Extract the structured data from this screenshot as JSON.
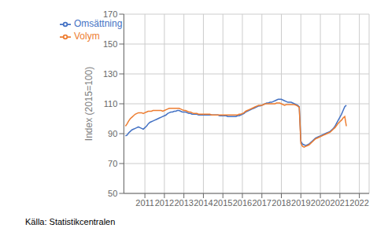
{
  "chart_data": {
    "type": "line",
    "ylabel": "Index (2015=100)",
    "annotations": [
      "Källa: Statistikcentralen"
    ],
    "xlim": [
      2009.92,
      2022.5
    ],
    "xticks": [
      2011,
      2012,
      2013,
      2014,
      2015,
      2016,
      2017,
      2018,
      2019,
      2020,
      2021,
      2022
    ],
    "ylim": [
      50,
      170
    ],
    "yticks": [
      50,
      70,
      90,
      110,
      130,
      150,
      170
    ],
    "grid": true,
    "legend": "upper left",
    "x": [
      2010,
      2010.083333,
      2010.166667,
      2010.25,
      2010.333333,
      2010.416667,
      2010.5,
      2010.583333,
      2010.666667,
      2010.75,
      2010.833333,
      2010.916667,
      2011,
      2011.083333,
      2011.166667,
      2011.25,
      2011.333333,
      2011.416667,
      2011.5,
      2011.583333,
      2011.666667,
      2011.75,
      2011.833333,
      2011.916667,
      2012,
      2012.083333,
      2012.166667,
      2012.25,
      2012.333333,
      2012.416667,
      2012.5,
      2012.583333,
      2012.666667,
      2012.75,
      2012.833333,
      2012.916667,
      2013,
      2013.083333,
      2013.166667,
      2013.25,
      2013.333333,
      2013.416667,
      2013.5,
      2013.583333,
      2013.666667,
      2013.75,
      2013.833333,
      2013.916667,
      2014,
      2014.083333,
      2014.166667,
      2014.25,
      2014.333333,
      2014.416667,
      2014.5,
      2014.583333,
      2014.666667,
      2014.75,
      2014.833333,
      2014.916667,
      2015,
      2015.083333,
      2015.166667,
      2015.25,
      2015.333333,
      2015.416667,
      2015.5,
      2015.583333,
      2015.666667,
      2015.75,
      2015.833333,
      2015.916667,
      2016,
      2016.083333,
      2016.166667,
      2016.25,
      2016.333333,
      2016.416667,
      2016.5,
      2016.583333,
      2016.666667,
      2016.75,
      2016.833333,
      2016.916667,
      2017,
      2017.083333,
      2017.166667,
      2017.25,
      2017.333333,
      2017.416667,
      2017.5,
      2017.583333,
      2017.666667,
      2017.75,
      2017.833333,
      2017.916667,
      2018,
      2018.083333,
      2018.166667,
      2018.25,
      2018.333333,
      2018.416667,
      2018.5,
      2018.583333,
      2018.666667,
      2018.75,
      2018.833333,
      2018.916667,
      2019,
      2019.083333,
      2019.166667,
      2019.25,
      2019.333333,
      2019.416667,
      2019.5,
      2019.583333,
      2019.666667,
      2019.75,
      2019.833333,
      2019.916667,
      2020,
      2020.083333,
      2020.166667,
      2020.25,
      2020.333333,
      2020.416667,
      2020.5,
      2020.583333,
      2020.666667,
      2020.75,
      2020.833333,
      2020.916667,
      2021,
      2021.083333,
      2021.166667,
      2021.25,
      2021.333333
    ],
    "series": [
      {
        "name": "Omsättning",
        "color": "#4472C4",
        "values": [
          88.5,
          89.0,
          90.5,
          91.5,
          92.5,
          93.0,
          93.5,
          94.0,
          94.5,
          94.0,
          93.5,
          93.0,
          94.0,
          95.0,
          96.5,
          97.5,
          98.0,
          98.5,
          99.0,
          99.5,
          100.0,
          100.5,
          101.0,
          101.5,
          102.0,
          102.5,
          103.5,
          104.0,
          104.5,
          104.5,
          105.0,
          105.0,
          105.5,
          105.5,
          105.0,
          104.5,
          104.5,
          104.5,
          104.0,
          103.5,
          103.5,
          103.0,
          103.0,
          103.0,
          103.0,
          102.5,
          102.5,
          102.5,
          102.5,
          102.5,
          102.5,
          102.5,
          102.5,
          102.5,
          102.5,
          102.5,
          102.5,
          102.5,
          102.0,
          102.0,
          102.0,
          102.0,
          102.0,
          101.5,
          101.5,
          101.5,
          101.5,
          101.5,
          101.5,
          102.0,
          102.0,
          102.5,
          103.0,
          103.5,
          104.5,
          105.0,
          105.5,
          106.0,
          106.5,
          107.0,
          107.5,
          108.0,
          108.5,
          108.5,
          109.0,
          109.5,
          110.0,
          110.5,
          110.5,
          111.0,
          111.0,
          111.5,
          112.0,
          112.5,
          113.0,
          113.0,
          113.0,
          112.5,
          112.0,
          111.5,
          111.0,
          111.0,
          111.0,
          110.5,
          110.0,
          109.5,
          109.0,
          108.0,
          85.0,
          83.0,
          82.5,
          82.0,
          82.5,
          83.0,
          84.0,
          85.0,
          86.0,
          87.0,
          87.5,
          88.0,
          88.5,
          89.0,
          89.5,
          90.0,
          90.5,
          91.0,
          91.5,
          92.5,
          93.5,
          95.0,
          97.0,
          99.0,
          101.0,
          103.0,
          105.5,
          108.0,
          109.0
        ]
      },
      {
        "name": "Volym",
        "color": "#ED7D31",
        "values": [
          95.0,
          96.5,
          98.5,
          100.0,
          101.0,
          102.0,
          103.0,
          103.5,
          104.0,
          104.0,
          104.0,
          103.5,
          104.0,
          104.5,
          105.0,
          105.0,
          105.0,
          105.5,
          105.5,
          105.5,
          105.5,
          105.5,
          105.5,
          105.0,
          105.5,
          106.0,
          106.5,
          107.0,
          107.0,
          107.0,
          107.0,
          107.0,
          107.0,
          107.0,
          106.5,
          106.0,
          105.5,
          105.5,
          105.0,
          104.5,
          104.5,
          104.0,
          103.5,
          103.5,
          103.5,
          103.0,
          103.0,
          103.0,
          103.0,
          103.0,
          103.0,
          103.0,
          103.0,
          102.5,
          102.5,
          102.5,
          102.5,
          102.5,
          102.5,
          102.5,
          102.5,
          102.5,
          102.5,
          102.5,
          102.5,
          102.5,
          102.5,
          102.5,
          102.5,
          102.5,
          103.0,
          103.0,
          103.5,
          104.0,
          105.0,
          105.5,
          106.0,
          106.5,
          107.0,
          107.5,
          108.0,
          108.5,
          109.0,
          109.0,
          109.0,
          109.5,
          110.0,
          110.0,
          110.0,
          110.0,
          110.0,
          110.0,
          110.0,
          110.5,
          110.5,
          110.5,
          110.0,
          109.5,
          109.0,
          109.5,
          109.5,
          109.5,
          109.5,
          109.5,
          109.5,
          109.0,
          108.5,
          107.5,
          83.5,
          81.5,
          81.0,
          81.5,
          82.0,
          82.5,
          83.5,
          84.5,
          85.5,
          86.5,
          87.0,
          87.5,
          88.0,
          88.5,
          89.0,
          89.5,
          90.0,
          90.5,
          91.0,
          92.0,
          93.0,
          94.0,
          95.5,
          97.0,
          98.0,
          99.0,
          100.5,
          101.5,
          95.0
        ]
      }
    ]
  }
}
